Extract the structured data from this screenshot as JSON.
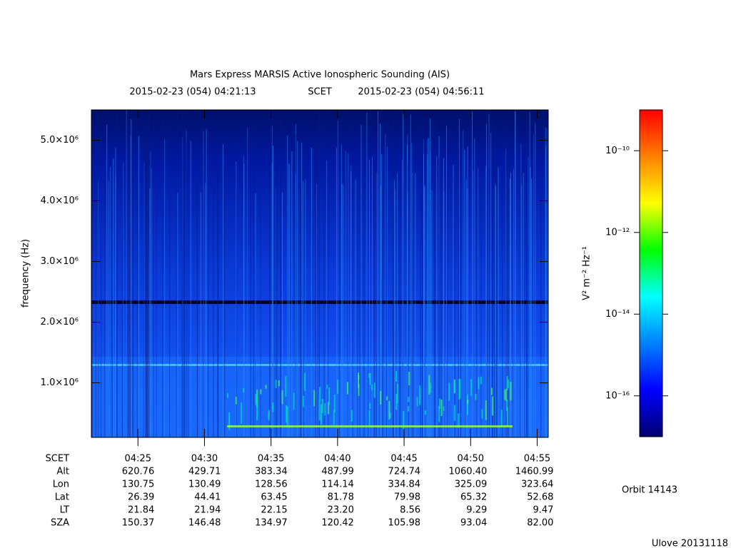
{
  "chart_data": {
    "type": "spectrogram",
    "title": "Mars Express MARSIS Active Ionospheric Sounding (AIS)",
    "start_time": "2015-02-23 (054) 04:21:13",
    "time_frame": "SCET",
    "end_time": "2015-02-23 (054) 04:56:11",
    "ylabel": "frequency (Hz)",
    "ylim": [
      100000,
      5500000
    ],
    "yticks": [
      {
        "value": 1000000,
        "label": "1.0×10⁶"
      },
      {
        "value": 2000000,
        "label": "2.0×10⁶"
      },
      {
        "value": 3000000,
        "label": "3.0×10⁶"
      },
      {
        "value": 4000000,
        "label": "4.0×10⁶"
      },
      {
        "value": 5000000,
        "label": "5.0×10⁶"
      }
    ],
    "xlim": [
      "04:21:30",
      "04:55:50"
    ],
    "xticks": [
      "04:25",
      "04:30",
      "04:35",
      "04:40",
      "04:45",
      "04:50",
      "04:55"
    ],
    "colorbar": {
      "label": "V² m⁻² Hz⁻¹",
      "log": true,
      "zlim": [
        1e-17,
        1e-09
      ],
      "ticks": [
        {
          "value": 1e-16,
          "label": "10⁻¹⁶"
        },
        {
          "value": 1e-14,
          "label": "10⁻¹⁴"
        },
        {
          "value": 1e-12,
          "label": "10⁻¹²"
        },
        {
          "value": 1e-10,
          "label": "10⁻¹⁰"
        }
      ],
      "colormap": [
        "#000070",
        "#0000ff",
        "#0080ff",
        "#00ffff",
        "#00ff00",
        "#ffff00",
        "#ff8000",
        "#ff0000"
      ]
    },
    "ephemeris": {
      "time_label": "SCET",
      "rows": [
        {
          "label": "Alt",
          "values": [
            "620.76",
            "429.71",
            "383.34",
            "487.99",
            "724.74",
            "1060.40",
            "1460.99"
          ]
        },
        {
          "label": "Lon",
          "values": [
            "130.75",
            "130.49",
            "128.56",
            "114.14",
            "334.84",
            "325.09",
            "323.64"
          ]
        },
        {
          "label": "Lat",
          "values": [
            "26.39",
            "44.41",
            "63.45",
            "81.78",
            "79.98",
            "65.32",
            "52.68"
          ]
        },
        {
          "label": "LT",
          "values": [
            "21.84",
            "21.94",
            "22.15",
            "23.20",
            "8.56",
            "9.29",
            "9.47"
          ]
        },
        {
          "label": "SZA",
          "values": [
            "150.37",
            "146.48",
            "134.97",
            "120.42",
            "105.98",
            "93.04",
            "82.00"
          ]
        }
      ]
    },
    "orbit": "Orbit 14143",
    "version": "Ulove 20131118"
  }
}
